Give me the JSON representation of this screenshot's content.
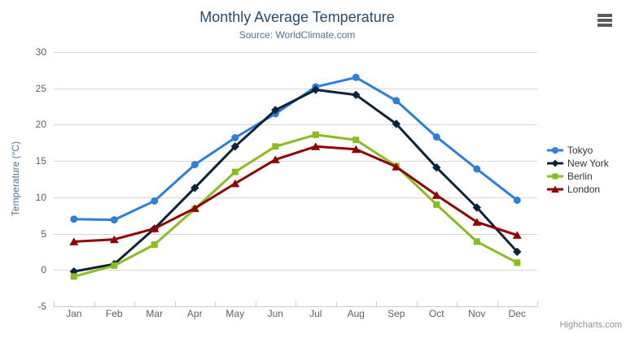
{
  "chart": {
    "title": "Monthly Average Temperature",
    "subtitle": "Source: WorldClimate.com",
    "y_axis_title": "Temperature (°C)",
    "credits_label": "Highcharts.com"
  },
  "icons": {
    "context_menu": "hamburger-icon"
  },
  "colors": {
    "title": "#274b6d",
    "subtitle": "#4d759e",
    "axis_title": "#4d759e",
    "tick_label": "#606060",
    "gridline": "#d8d8d8",
    "axis_line": "#c0d0e0",
    "legend_text": "#333333",
    "credits": "#909090",
    "menu_icon": "#5c5c5c"
  },
  "chart_data": {
    "type": "line",
    "title": "Monthly Average Temperature",
    "subtitle": "Source: WorldClimate.com",
    "xlabel": "",
    "ylabel": "Temperature (°C)",
    "ylim": [
      -5,
      30
    ],
    "yticks": [
      -5,
      0,
      5,
      10,
      15,
      20,
      25,
      30
    ],
    "grid": true,
    "legend_position": "right",
    "categories": [
      "Jan",
      "Feb",
      "Mar",
      "Apr",
      "May",
      "Jun",
      "Jul",
      "Aug",
      "Sep",
      "Oct",
      "Nov",
      "Dec"
    ],
    "series": [
      {
        "name": "Tokyo",
        "color": "#2f7ed8",
        "marker": "circle",
        "values": [
          7.0,
          6.9,
          9.5,
          14.5,
          18.2,
          21.5,
          25.2,
          26.5,
          23.3,
          18.3,
          13.9,
          9.6
        ]
      },
      {
        "name": "New York",
        "color": "#0d233a",
        "marker": "diamond",
        "values": [
          -0.2,
          0.8,
          5.7,
          11.3,
          17.0,
          22.0,
          24.8,
          24.1,
          20.1,
          14.1,
          8.6,
          2.5
        ]
      },
      {
        "name": "Berlin",
        "color": "#8bbc21",
        "marker": "square",
        "values": [
          -0.9,
          0.6,
          3.5,
          8.4,
          13.5,
          17.0,
          18.6,
          17.9,
          14.3,
          9.0,
          3.9,
          1.0
        ]
      },
      {
        "name": "London",
        "color": "#910000",
        "marker": "triangle",
        "values": [
          3.9,
          4.2,
          5.7,
          8.5,
          11.9,
          15.2,
          17.0,
          16.6,
          14.2,
          10.3,
          6.6,
          4.8
        ]
      }
    ]
  }
}
